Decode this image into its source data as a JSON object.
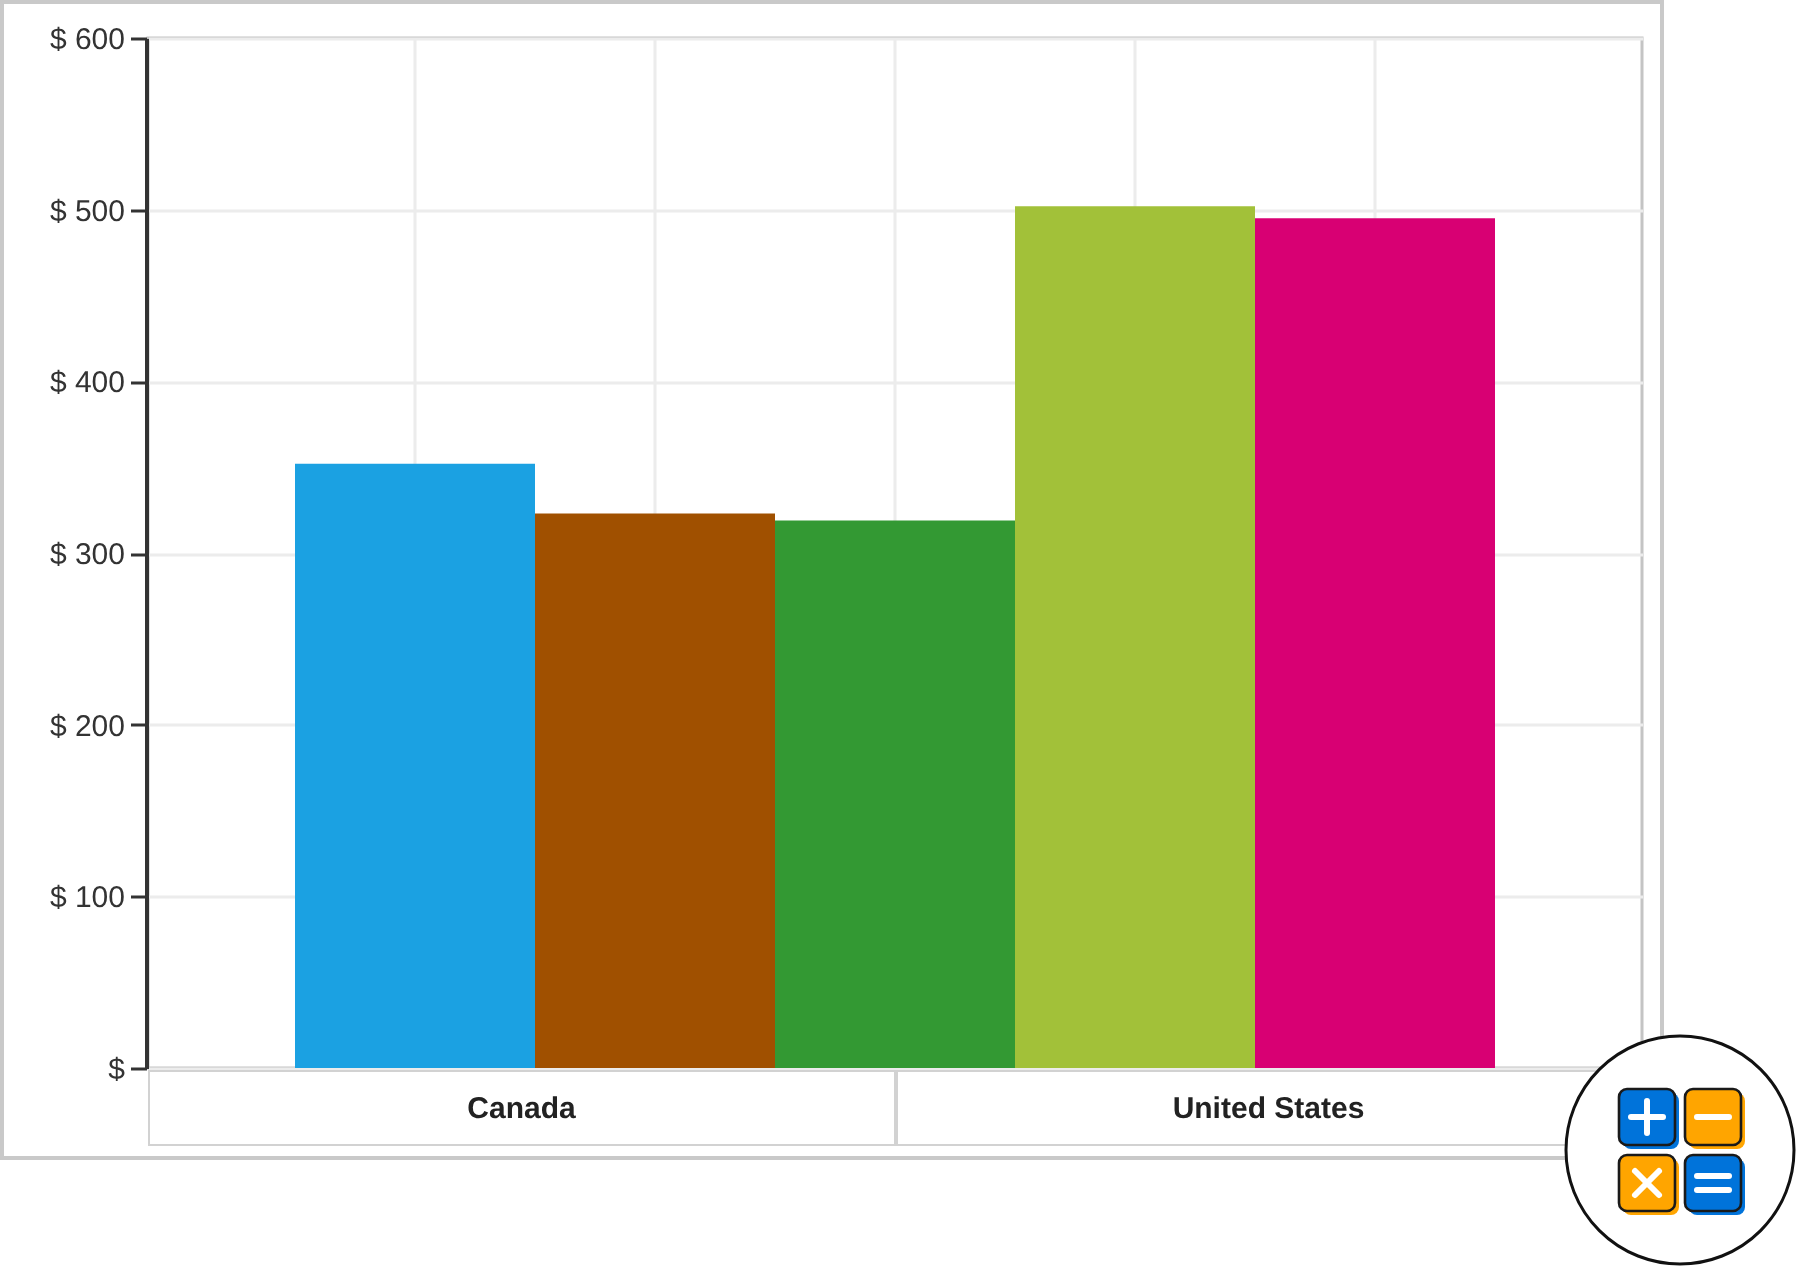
{
  "chart_data": {
    "type": "bar",
    "categories": [
      null,
      null,
      null,
      null,
      null
    ],
    "values": [
      352,
      323,
      319,
      502,
      495
    ],
    "colors": [
      "#1ba1e2",
      "#a05000",
      "#339933",
      "#a2c139",
      "#d80073"
    ],
    "ylim": [
      0,
      600
    ],
    "yticks": [
      {
        "value": 0,
        "label": "$"
      },
      {
        "value": 100,
        "label": "$ 100"
      },
      {
        "value": 200,
        "label": "$ 200"
      },
      {
        "value": 300,
        "label": "$ 300"
      },
      {
        "value": 400,
        "label": "$ 400"
      },
      {
        "value": 500,
        "label": "$ 500"
      },
      {
        "value": 600,
        "label": "$ 600"
      }
    ],
    "grid": true,
    "annotations": [
      "Canada",
      "United States"
    ]
  }
}
